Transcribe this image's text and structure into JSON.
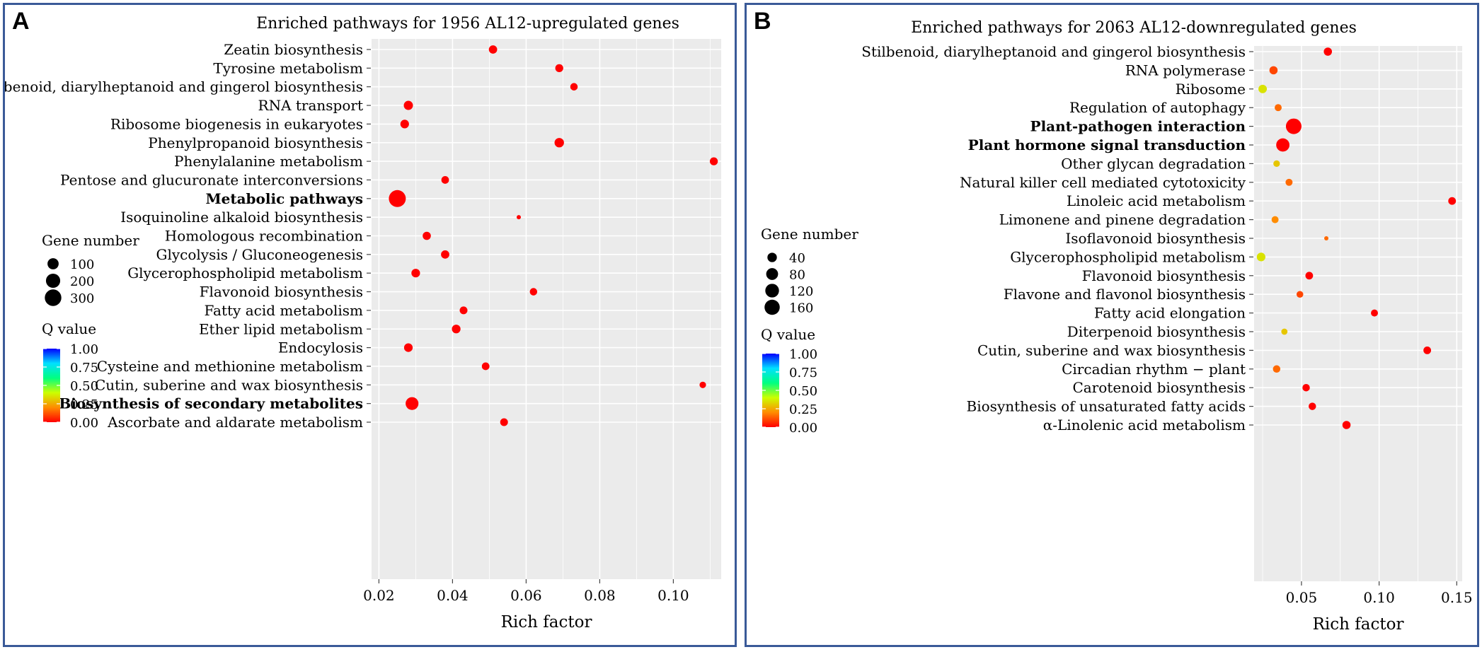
{
  "figure": {
    "panels": [
      {
        "letter": "A"
      },
      {
        "letter": "B"
      }
    ]
  },
  "chart_data": [
    {
      "type": "scatter",
      "title": "Enriched pathways for 1956 AL12-upregulated genes",
      "xlabel": "Rich factor",
      "ylabel": "",
      "xlim": [
        0.018,
        0.113
      ],
      "xticks": [
        0.02,
        0.04,
        0.06,
        0.08,
        0.1
      ],
      "xtick_labels": [
        "0.02",
        "0.04",
        "0.06",
        "0.08",
        "0.10"
      ],
      "legend_size_title": "Gene number",
      "legend_sizes": [
        {
          "label": "100",
          "value": 100
        },
        {
          "label": "200",
          "value": 200
        },
        {
          "label": "300",
          "value": 300
        }
      ],
      "legend_color_title": "Q value",
      "legend_color_labels": [
        "1.00",
        "0.75",
        "0.50",
        "0.25",
        "0.00"
      ],
      "points": [
        {
          "label": "Zeatin biosynthesis",
          "x": 0.051,
          "genes": 40,
          "q": 0.0,
          "bold": false
        },
        {
          "label": "Tyrosine metabolism",
          "x": 0.069,
          "genes": 35,
          "q": 0.0,
          "bold": false
        },
        {
          "label": "Stilbenoid, diarylheptanoid and gingerol biosynthesis",
          "x": 0.073,
          "genes": 28,
          "q": 0.0,
          "bold": false
        },
        {
          "label": "RNA transport",
          "x": 0.028,
          "genes": 55,
          "q": 0.0,
          "bold": false
        },
        {
          "label": "Ribosome biogenesis in eukaryotes",
          "x": 0.027,
          "genes": 45,
          "q": 0.0,
          "bold": false
        },
        {
          "label": "Phenylpropanoid biosynthesis",
          "x": 0.069,
          "genes": 60,
          "q": 0.0,
          "bold": false
        },
        {
          "label": "Phenylalanine metabolism",
          "x": 0.111,
          "genes": 35,
          "q": 0.0,
          "bold": false
        },
        {
          "label": "Pentose and glucuronate interconversions",
          "x": 0.038,
          "genes": 30,
          "q": 0.0,
          "bold": false
        },
        {
          "label": "Metabolic pathways",
          "x": 0.025,
          "genes": 320,
          "q": 0.0,
          "bold": true
        },
        {
          "label": "Isoquinoline alkaloid biosynthesis",
          "x": 0.058,
          "genes": 8,
          "q": 0.0,
          "bold": false
        },
        {
          "label": "Homologous recombination",
          "x": 0.033,
          "genes": 38,
          "q": 0.0,
          "bold": false
        },
        {
          "label": "Glycolysis / Gluconeogenesis",
          "x": 0.038,
          "genes": 40,
          "q": 0.0,
          "bold": false
        },
        {
          "label": "Glycerophospholipid metabolism",
          "x": 0.03,
          "genes": 45,
          "q": 0.0,
          "bold": false
        },
        {
          "label": "Flavonoid biosynthesis",
          "x": 0.062,
          "genes": 28,
          "q": 0.0,
          "bold": false
        },
        {
          "label": "Fatty acid metabolism",
          "x": 0.043,
          "genes": 32,
          "q": 0.0,
          "bold": false
        },
        {
          "label": "Ether lipid metabolism",
          "x": 0.041,
          "genes": 45,
          "q": 0.0,
          "bold": false
        },
        {
          "label": "Endocylosis",
          "x": 0.028,
          "genes": 45,
          "q": 0.0,
          "bold": false
        },
        {
          "label": "Cysteine and methionine metabolism",
          "x": 0.049,
          "genes": 30,
          "q": 0.0,
          "bold": false
        },
        {
          "label": "Cutin, suberine and wax biosynthesis",
          "x": 0.108,
          "genes": 18,
          "q": 0.0,
          "bold": false
        },
        {
          "label": "Biosynthesis of secondary metabolites",
          "x": 0.029,
          "genes": 150,
          "q": 0.0,
          "bold": true
        },
        {
          "label": "Ascorbate and aldarate metabolism",
          "x": 0.054,
          "genes": 32,
          "q": 0.0,
          "bold": false
        }
      ]
    },
    {
      "type": "scatter",
      "title": "Enriched pathways for 2063 AL12-downregulated genes",
      "xlabel": "Rich factor",
      "ylabel": "",
      "xlim": [
        0.0195,
        0.1535
      ],
      "xticks": [
        0.05,
        0.1,
        0.15
      ],
      "xtick_labels": [
        "0.05",
        "0.10",
        "0.15"
      ],
      "legend_size_title": "Gene number",
      "legend_sizes": [
        {
          "label": "40",
          "value": 40
        },
        {
          "label": "80",
          "value": 80
        },
        {
          "label": "120",
          "value": 120
        },
        {
          "label": "160",
          "value": 160
        }
      ],
      "legend_color_title": "Q value",
      "legend_color_labels": [
        "1.00",
        "0.75",
        "0.50",
        "0.25",
        "0.00"
      ],
      "points": [
        {
          "label": "Stilbenoid, diarylheptanoid and gingerol biosynthesis",
          "x": 0.067,
          "genes": 25,
          "q": 0.0,
          "bold": false
        },
        {
          "label": "RNA polymerase",
          "x": 0.032,
          "genes": 25,
          "q": 0.1,
          "bold": false
        },
        {
          "label": "Ribosome",
          "x": 0.025,
          "genes": 28,
          "q": 0.35,
          "bold": false
        },
        {
          "label": "Regulation of autophagy",
          "x": 0.035,
          "genes": 15,
          "q": 0.15,
          "bold": false
        },
        {
          "label": "Plant-pathogen interaction",
          "x": 0.045,
          "genes": 170,
          "q": 0.0,
          "bold": true
        },
        {
          "label": "Plant hormone signal transduction",
          "x": 0.038,
          "genes": 110,
          "q": 0.0,
          "bold": true
        },
        {
          "label": "Other glycan degradation",
          "x": 0.034,
          "genes": 12,
          "q": 0.3,
          "bold": false
        },
        {
          "label": "Natural killer cell mediated cytotoxicity",
          "x": 0.042,
          "genes": 15,
          "q": 0.15,
          "bold": false
        },
        {
          "label": "Linoleic acid metabolism",
          "x": 0.147,
          "genes": 20,
          "q": 0.0,
          "bold": false
        },
        {
          "label": "Limonene and pinene degradation",
          "x": 0.033,
          "genes": 15,
          "q": 0.2,
          "bold": false
        },
        {
          "label": "Isoflavonoid biosynthesis",
          "x": 0.066,
          "genes": 5,
          "q": 0.15,
          "bold": false
        },
        {
          "label": "Glycerophospholipid metabolism",
          "x": 0.024,
          "genes": 30,
          "q": 0.35,
          "bold": false
        },
        {
          "label": "Flavonoid biosynthesis",
          "x": 0.055,
          "genes": 20,
          "q": 0.0,
          "bold": false
        },
        {
          "label": "Flavone and flavonol biosynthesis",
          "x": 0.049,
          "genes": 13,
          "q": 0.1,
          "bold": false
        },
        {
          "label": "Fatty acid elongation",
          "x": 0.097,
          "genes": 15,
          "q": 0.0,
          "bold": false
        },
        {
          "label": "Diterpenoid biosynthesis",
          "x": 0.039,
          "genes": 10,
          "q": 0.3,
          "bold": false
        },
        {
          "label": "Cutin, suberine and wax biosynthesis",
          "x": 0.131,
          "genes": 20,
          "q": 0.0,
          "bold": false
        },
        {
          "label": "Circadian rhythm − plant",
          "x": 0.034,
          "genes": 18,
          "q": 0.15,
          "bold": false
        },
        {
          "label": "Carotenoid biosynthesis",
          "x": 0.053,
          "genes": 18,
          "q": 0.0,
          "bold": false
        },
        {
          "label": "Biosynthesis of unsaturated fatty acids",
          "x": 0.057,
          "genes": 18,
          "q": 0.0,
          "bold": false
        },
        {
          "label": "α-Linolenic acid metabolism",
          "x": 0.079,
          "genes": 25,
          "q": 0.0,
          "bold": false
        }
      ]
    }
  ],
  "colors": {
    "panel_border": "#3a5a98",
    "plot_background": "#ebebeb",
    "grid": "#ffffff",
    "q_gradient": [
      "#ff0000",
      "#ff8c00",
      "#ccff00",
      "#00ff80",
      "#00e0ff",
      "#0000ff"
    ]
  }
}
